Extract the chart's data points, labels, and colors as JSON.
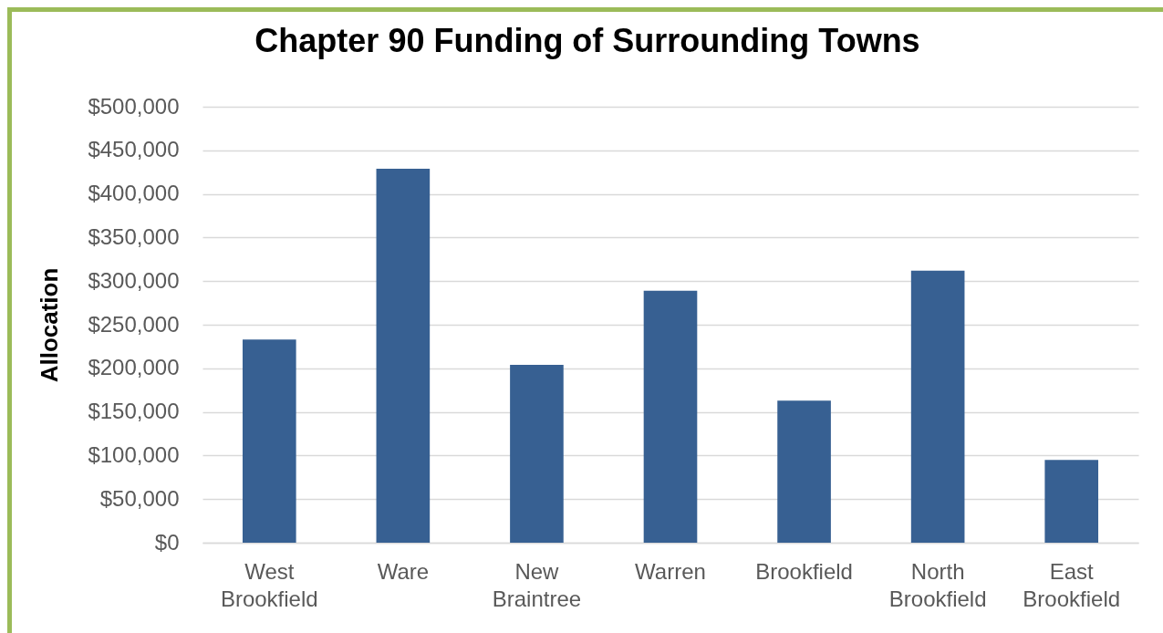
{
  "chart_data": {
    "type": "bar",
    "title": "Chapter 90 Funding of Surrounding Towns",
    "ylabel": "Allocation",
    "categories": [
      "West Brookfield",
      "Ware",
      "New Braintree",
      "Warren",
      "Brookfield",
      "North Brookfield",
      "East Brookfield"
    ],
    "values": [
      233000,
      429000,
      204000,
      289000,
      163000,
      312000,
      95000
    ],
    "color": "#376092",
    "ylim": [
      0,
      500000
    ],
    "yticks": [
      {
        "value": 0,
        "label": "$0"
      },
      {
        "value": 50000,
        "label": "$50,000"
      },
      {
        "value": 100000,
        "label": "$100,000"
      },
      {
        "value": 150000,
        "label": "$150,000"
      },
      {
        "value": 200000,
        "label": "$200,000"
      },
      {
        "value": 250000,
        "label": "$250,000"
      },
      {
        "value": 300000,
        "label": "$300,000"
      },
      {
        "value": 350000,
        "label": "$350,000"
      },
      {
        "value": 400000,
        "label": "$400,000"
      },
      {
        "value": 450000,
        "label": "$450,000"
      },
      {
        "value": 500000,
        "label": "$500,000"
      }
    ],
    "grid": true
  }
}
